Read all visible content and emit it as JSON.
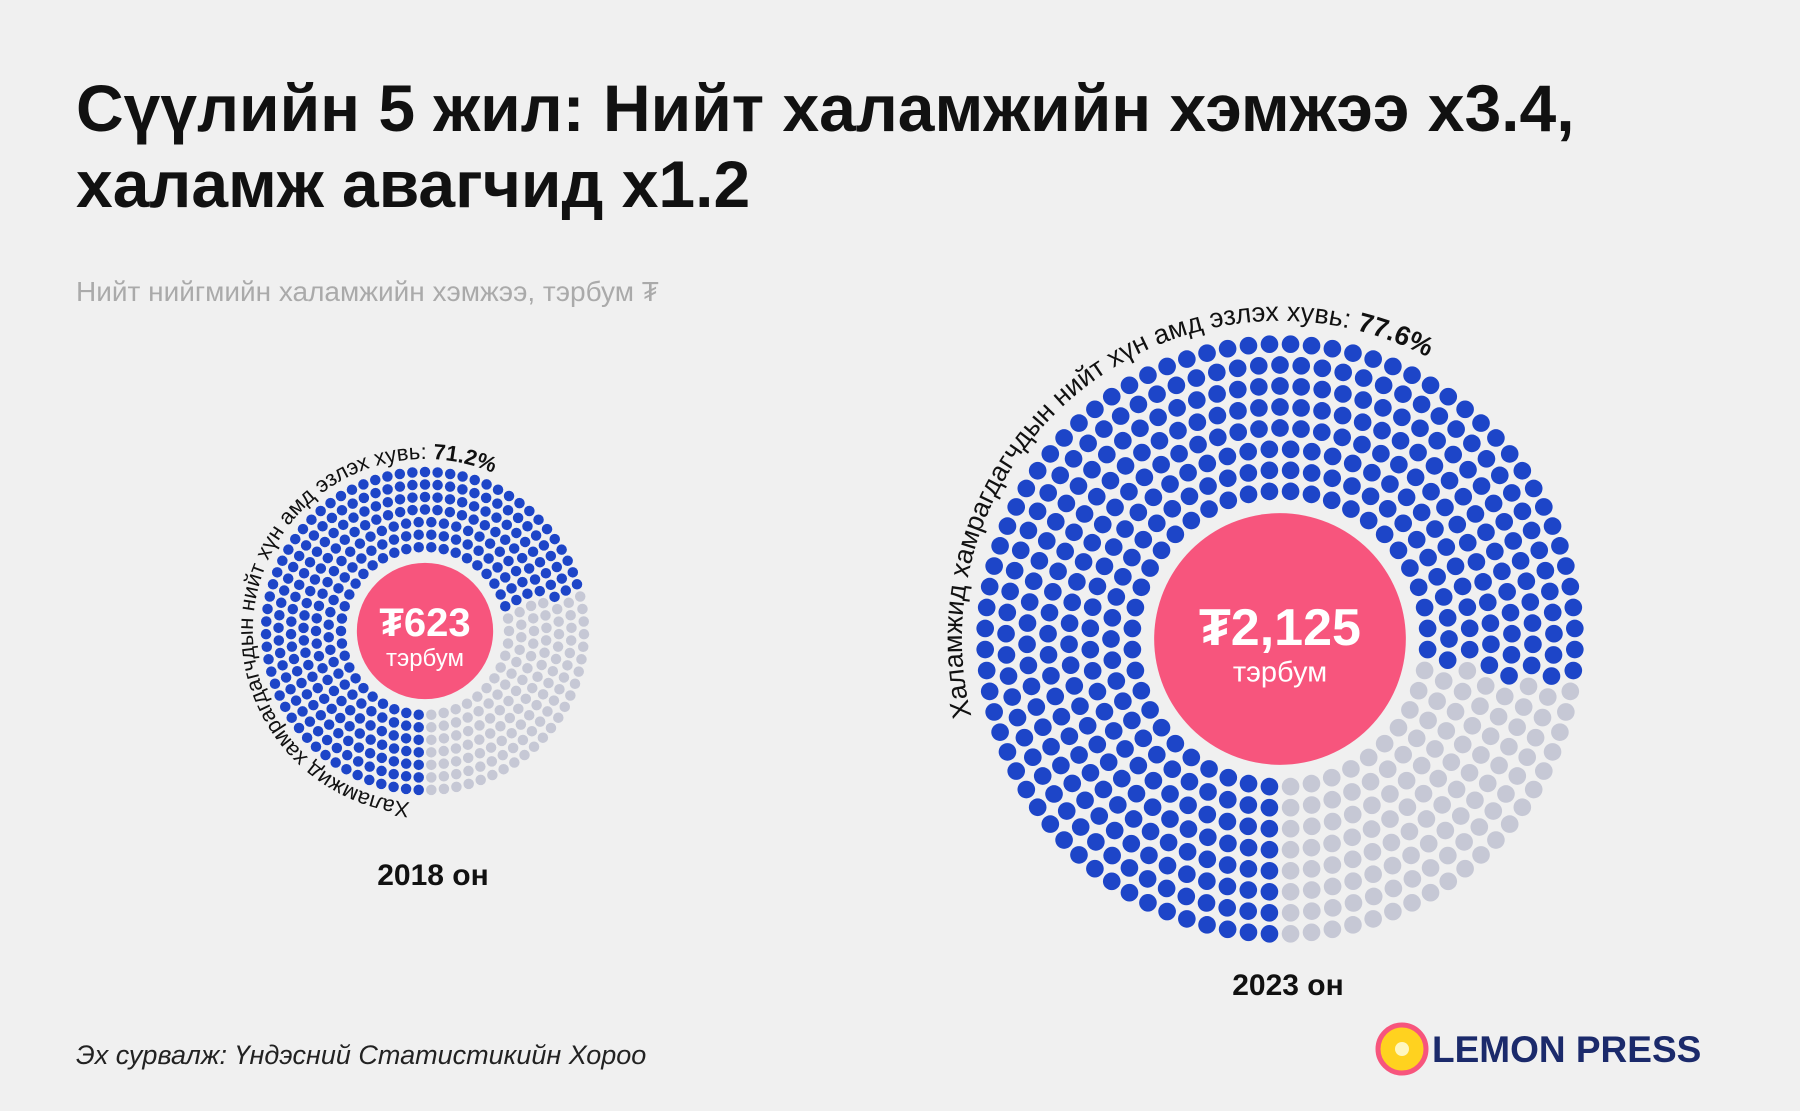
{
  "title": "Сүүлийн 5 жил: Нийт халамжийн хэмжээ x3.4, халамж авагчид x1.2",
  "subtitle": "Нийт нийгмийн халамжийн хэмжээ, тэрбум ₮",
  "source": "Эх сурвалж: Үндэсний Статистикийн Хороо",
  "brand": "LEMON PRESS",
  "chart_data": [
    {
      "type": "dot-donut",
      "arc_label": "Халамжид хамрагдагчдын нийт хүн амд эзлэх хувь:",
      "share": 71.2,
      "share_label": "71.2%",
      "amount": 623,
      "amount_label": "₮623",
      "amount_unit": "тэрбум",
      "caption": "2018 он",
      "color": "#1d45c8",
      "rest_color": "#c6c8d5",
      "center_color": "#f7557d"
    },
    {
      "type": "dot-donut",
      "arc_label": "Халамжид хамрагдагчдын нийт хүн амд эзлэх хувь:",
      "share": 77.6,
      "share_label": "77.6%",
      "amount": 2125,
      "amount_label": "₮2,125",
      "amount_unit": "тэрбум",
      "caption": "2023 он",
      "color": "#1d45c8",
      "rest_color": "#c6c8d5",
      "center_color": "#f7557d"
    }
  ]
}
